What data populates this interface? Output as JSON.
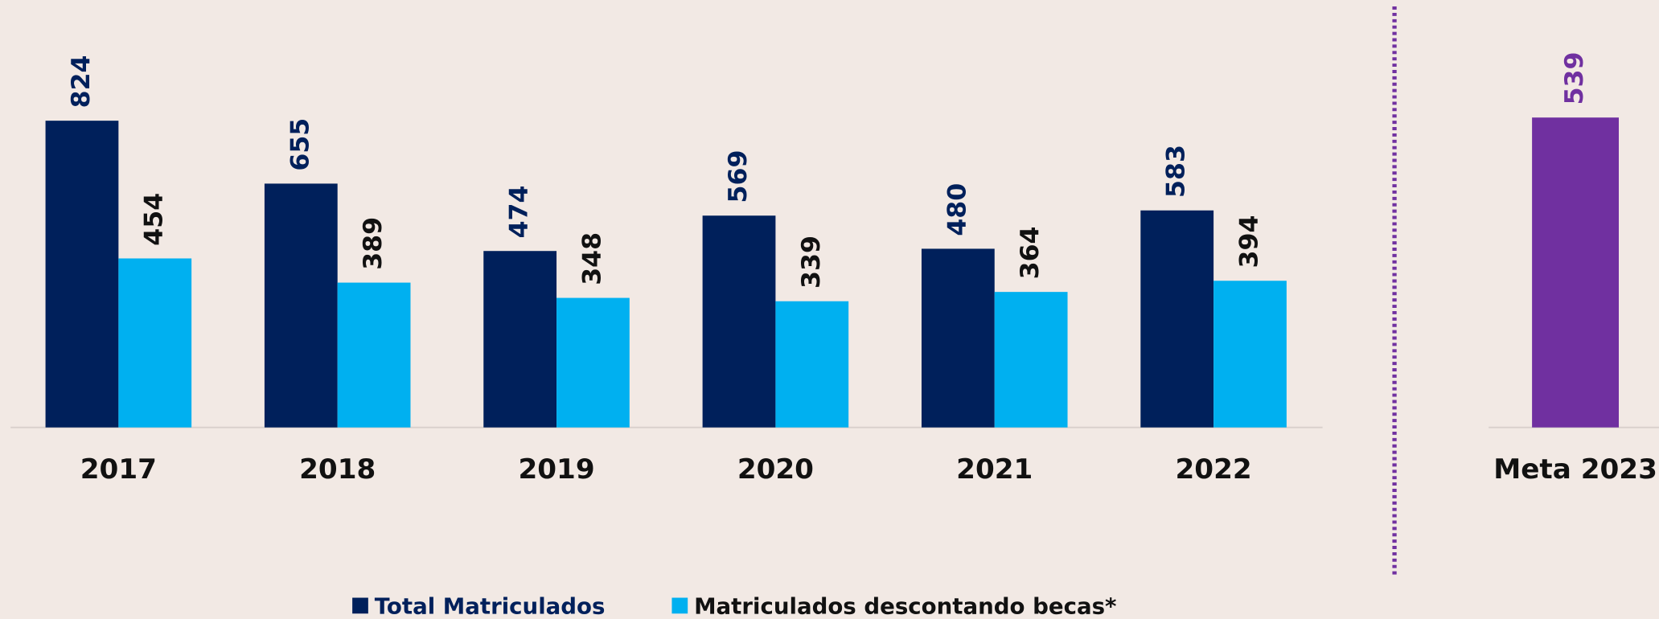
{
  "chart_data": [
    {
      "type": "bar",
      "categories": [
        "2017",
        "2018",
        "2019",
        "2020",
        "2021",
        "2022"
      ],
      "series": [
        {
          "name": "Total Matriculados",
          "color": "#00205b",
          "values": [
            824,
            655,
            474,
            569,
            480,
            583
          ]
        },
        {
          "name": "Matriculados descontando becas*",
          "color": "#00b0f0",
          "values": [
            454,
            389,
            348,
            339,
            364,
            394
          ]
        }
      ],
      "legend": "bottom"
    },
    {
      "type": "bar",
      "categories": [
        "Meta 2023"
      ],
      "values": [
        539
      ],
      "color": "#7030a0"
    }
  ]
}
